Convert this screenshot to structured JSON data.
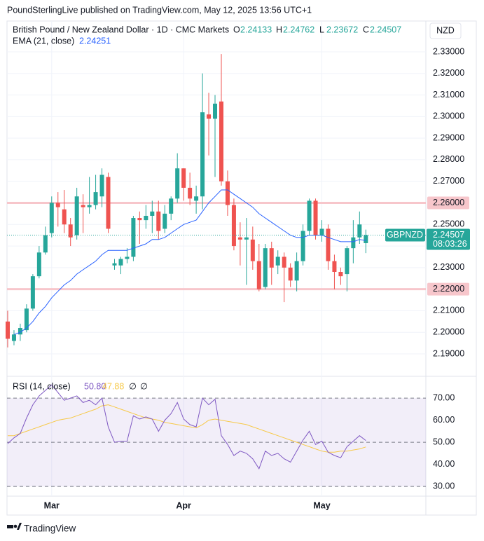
{
  "header": {
    "publisher": "PoundSterlingLive published on TradingView.com, May 12, 2025 13:56 UTC+1"
  },
  "footer": {
    "brand": "TradingView"
  },
  "chart_data": [
    {
      "type": "candlestick",
      "title": "British Pound / New Zealand Dollar · 1D · CMC Markets",
      "ohlc_labels": [
        "O",
        "H",
        "L",
        "C"
      ],
      "currency": "NZD",
      "symbol_label": "GBPNZD",
      "countdown": "08:03:26",
      "up_color": "#26a69a",
      "down_color": "#ef5350",
      "categories": [
        null,
        null,
        null,
        null,
        null,
        null,
        null,
        "Mar",
        null,
        null,
        null,
        null,
        null,
        null,
        null,
        null,
        null,
        null,
        null,
        null,
        null,
        null,
        null,
        null,
        null,
        null,
        null,
        null,
        "Apr",
        null,
        null,
        null,
        null,
        null,
        null,
        null,
        null,
        null,
        null,
        null,
        null,
        null,
        null,
        null,
        null,
        null,
        null,
        null,
        null,
        null,
        "May",
        null,
        null,
        null,
        null,
        null,
        null,
        null
      ],
      "open": [
        2.205,
        2.196,
        2.199,
        2.201,
        2.211,
        2.226,
        2.237,
        2.246,
        2.26,
        2.257,
        2.25,
        2.245,
        2.259,
        2.258,
        2.259,
        2.263,
        2.272,
        2.231,
        2.231,
        2.234,
        2.235,
        2.253,
        2.252,
        2.254,
        2.256,
        2.248,
        2.255,
        2.262,
        2.276,
        2.267,
        2.261,
        2.263,
        2.301,
        2.299,
        2.307,
        2.27,
        2.259,
        2.244,
        2.243,
        2.243,
        2.233,
        2.221,
        2.239,
        2.231,
        2.235,
        2.23,
        2.224,
        2.233,
        2.247,
        2.261,
        2.245,
        2.248,
        2.233,
        2.228,
        2.227,
        2.239,
        2.244,
        2.24133
      ],
      "high": [
        2.21,
        2.201,
        2.204,
        2.213,
        2.227,
        2.24,
        2.249,
        2.263,
        2.265,
        2.266,
        2.253,
        2.267,
        2.264,
        2.272,
        2.273,
        2.276,
        2.274,
        2.234,
        2.235,
        2.239,
        2.254,
        2.256,
        2.259,
        2.261,
        2.261,
        2.259,
        2.263,
        2.283,
        2.276,
        2.274,
        2.268,
        2.32,
        2.311,
        2.31,
        2.329,
        2.275,
        2.262,
        2.251,
        2.253,
        2.249,
        2.241,
        2.241,
        2.242,
        2.238,
        2.237,
        2.232,
        2.237,
        2.25,
        2.262,
        2.262,
        2.252,
        2.25,
        2.236,
        2.23,
        2.24,
        2.252,
        2.256,
        2.24762
      ],
      "low": [
        2.193,
        2.194,
        2.196,
        2.2,
        2.21,
        2.225,
        2.236,
        2.244,
        2.249,
        2.246,
        2.24,
        2.243,
        2.246,
        2.255,
        2.257,
        2.258,
        2.246,
        2.229,
        2.227,
        2.232,
        2.233,
        2.241,
        2.248,
        2.246,
        2.243,
        2.246,
        2.252,
        2.26,
        2.261,
        2.259,
        2.255,
        2.257,
        2.282,
        2.272,
        2.268,
        2.254,
        2.238,
        2.231,
        2.222,
        2.229,
        2.219,
        2.22,
        2.222,
        2.227,
        2.214,
        2.221,
        2.219,
        2.231,
        2.245,
        2.243,
        2.242,
        2.229,
        2.22,
        2.222,
        2.219,
        2.232,
        2.241,
        2.23672
      ],
      "close": [
        2.197,
        2.199,
        2.202,
        2.211,
        2.226,
        2.237,
        2.245,
        2.26,
        2.258,
        2.25,
        2.244,
        2.263,
        2.258,
        2.259,
        2.265,
        2.273,
        2.248,
        2.232,
        2.234,
        2.235,
        2.253,
        2.252,
        2.254,
        2.256,
        2.247,
        2.255,
        2.262,
        2.276,
        2.267,
        2.262,
        2.263,
        2.302,
        2.299,
        2.306,
        2.27,
        2.259,
        2.24,
        2.243,
        2.244,
        2.233,
        2.22,
        2.239,
        2.23,
        2.235,
        2.23,
        2.224,
        2.233,
        2.247,
        2.261,
        2.245,
        2.248,
        2.233,
        2.228,
        2.226,
        2.239,
        2.244,
        2.25,
        2.24507
      ],
      "overlays": [
        {
          "name": "EMA (21, close)",
          "color": "#2962ff",
          "values": [
            null,
            2.199,
            2.2,
            2.202,
            2.205,
            2.209,
            2.212,
            2.216,
            2.219,
            2.222,
            2.224,
            2.227,
            2.229,
            2.231,
            2.233,
            2.236,
            2.238,
            2.238,
            2.238,
            2.238,
            2.239,
            2.24,
            2.241,
            2.243,
            2.243,
            2.244,
            2.246,
            2.248,
            2.25,
            2.251,
            2.252,
            2.256,
            2.26,
            2.263,
            2.266,
            2.266,
            2.264,
            2.262,
            2.26,
            2.258,
            2.255,
            2.253,
            2.251,
            2.249,
            2.247,
            2.245,
            2.244,
            2.244,
            2.245,
            2.245,
            2.245,
            2.244,
            2.243,
            2.242,
            2.242,
            2.242,
            2.243,
            2.24251
          ]
        }
      ],
      "horizontal_lines": [
        2.26,
        2.22
      ],
      "ylim": [
        2.1796,
        2.3443
      ],
      "yticks": [
        {
          "value": 2.19,
          "label": "2.19000"
        },
        {
          "value": 2.2,
          "label": "2.20000"
        },
        {
          "value": 2.21,
          "label": "2.21000"
        },
        {
          "value": 2.22,
          "label": "2.22000"
        },
        {
          "value": 2.23,
          "label": "2.23000"
        },
        {
          "value": 2.24,
          "label": "2.24000"
        },
        {
          "value": 2.25,
          "label": "2.25000"
        },
        {
          "value": 2.26,
          "label": "2.26000"
        },
        {
          "value": 2.27,
          "label": "2.27000"
        },
        {
          "value": 2.28,
          "label": "2.28000"
        },
        {
          "value": 2.29,
          "label": "2.29000"
        },
        {
          "value": 2.3,
          "label": "2.30000"
        },
        {
          "value": 2.31,
          "label": "2.31000"
        },
        {
          "value": 2.32,
          "label": "2.32000"
        },
        {
          "value": 2.33,
          "label": "2.33000"
        }
      ],
      "grid": true
    },
    {
      "type": "line",
      "title": "RSI (14, close)",
      "extra_labels": [
        "∅",
        "∅"
      ],
      "series": [
        {
          "color": "#7e57c2",
          "value_label": "50.80",
          "values": [
            49.4,
            52,
            54,
            61,
            67,
            71,
            73.5,
            76,
            72.5,
            69,
            70,
            71,
            68,
            69,
            67,
            70,
            57,
            50,
            50.5,
            50.5,
            62,
            60.5,
            61.5,
            60.5,
            55,
            60,
            63,
            68,
            60.5,
            58,
            57,
            70,
            67,
            69.5,
            53,
            49,
            44,
            46,
            45,
            42.5,
            38,
            46,
            44,
            45,
            42.5,
            41,
            46,
            51,
            55,
            49,
            50.5,
            45.5,
            44,
            43,
            48,
            50.5,
            53,
            50.8
          ]
        },
        {
          "color": "#f7c948",
          "value_label": "47.88",
          "values": [
            53,
            53,
            54,
            55,
            56,
            57,
            58,
            59,
            60,
            60.5,
            61,
            62,
            63,
            64,
            65,
            66.5,
            67,
            66,
            65,
            64,
            63,
            62,
            61,
            60.5,
            60,
            59,
            58.5,
            58,
            57.5,
            57,
            56.5,
            58,
            60,
            60.5,
            60,
            59.5,
            59,
            58.5,
            58,
            57,
            56,
            55,
            54,
            53,
            52,
            51,
            50,
            49,
            48,
            47,
            46,
            45.5,
            45.5,
            46,
            46,
            46.5,
            47,
            47.88
          ]
        }
      ],
      "band": [
        30,
        70
      ],
      "dashed_levels": [
        70,
        50,
        30
      ],
      "ylim": [
        25.6,
        78.6
      ],
      "yticks": [
        {
          "value": 30,
          "label": "30.00"
        },
        {
          "value": 40,
          "label": "40.00"
        },
        {
          "value": 50,
          "label": "50.00"
        },
        {
          "value": 60,
          "label": "60.00"
        },
        {
          "value": 70,
          "label": "70.00"
        }
      ]
    }
  ]
}
